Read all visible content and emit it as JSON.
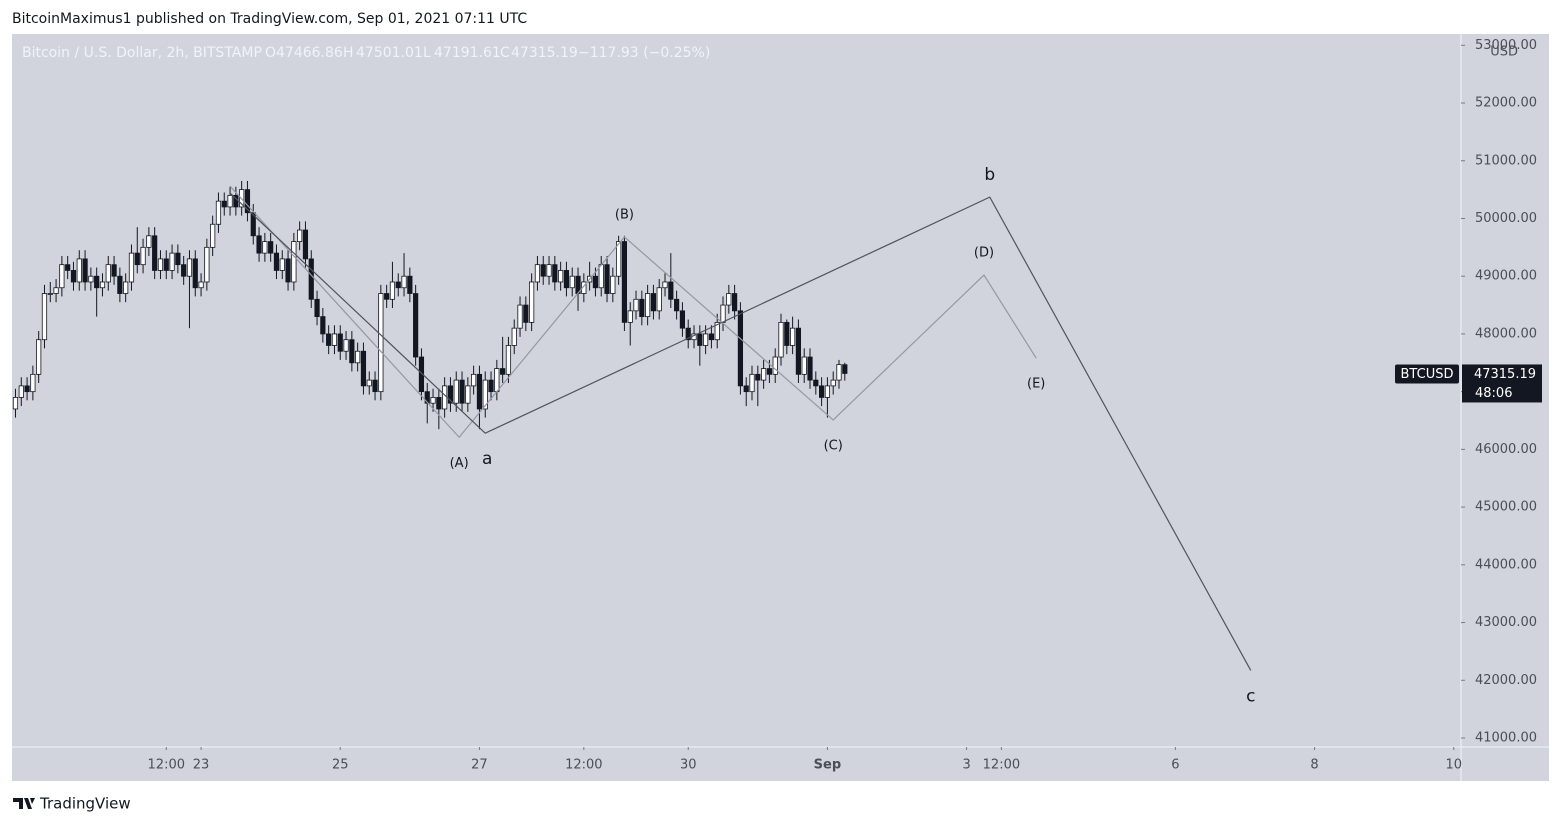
{
  "header": {
    "byline": "BitcoinMaximus1 published on TradingView.com, Sep 01, 2021 07:11 UTC",
    "brand": "TradingView"
  },
  "chart_data": {
    "type": "candlestick",
    "symbol_title": "Bitcoin / U.S. Dollar, 2h, BITSTAMP",
    "ohlc_letters": [
      "O",
      "H",
      "L",
      "C"
    ],
    "change": "−117.93 (−0.25%)",
    "currency": "USD",
    "countdown": "48:06",
    "up_color": "#ffffff",
    "down_color": "#131722",
    "background": "#d1d4dc",
    "xlim": [
      6.8,
      506.5
    ],
    "ylim": [
      40844,
      53196
    ],
    "xticks": [
      {
        "value": 60,
        "label": "12:00"
      },
      {
        "value": 72,
        "label": "23"
      },
      {
        "value": 120,
        "label": "25"
      },
      {
        "value": 168,
        "label": "27"
      },
      {
        "value": 204,
        "label": "12:00"
      },
      {
        "value": 240,
        "label": "30"
      },
      {
        "value": 288,
        "label": "Sep"
      },
      {
        "value": 336,
        "label": "3"
      },
      {
        "value": 348,
        "label": "12:00"
      },
      {
        "value": 408,
        "label": "6"
      },
      {
        "value": 456,
        "label": "8"
      },
      {
        "value": 504,
        "label": "10"
      }
    ],
    "yticks": [
      {
        "value": 41000,
        "label": "41000.00"
      },
      {
        "value": 42000,
        "label": "42000.00"
      },
      {
        "value": 43000,
        "label": "43000.00"
      },
      {
        "value": 44000,
        "label": "44000.00"
      },
      {
        "value": 45000,
        "label": "45000.00"
      },
      {
        "value": 46000,
        "label": "46000.00"
      },
      {
        "value": 47000,
        "label": "47000.00"
      },
      {
        "value": 48000,
        "label": "48000.00"
      },
      {
        "value": 49000,
        "label": "49000.00"
      },
      {
        "value": 50000,
        "label": "50000.00"
      },
      {
        "value": 51000,
        "label": "51000.00"
      },
      {
        "value": 52000,
        "label": "52000.00"
      },
      {
        "value": 53000,
        "label": "53000.00"
      }
    ],
    "series": [
      {
        "name": "BTCUSD",
        "x_start": 8,
        "x_step": 2,
        "ohlc": [
          [
            46700,
            47050,
            46550,
            46900
          ],
          [
            46900,
            47250,
            46750,
            47100
          ],
          [
            47100,
            47250,
            46850,
            47000
          ],
          [
            47000,
            47450,
            46850,
            47300
          ],
          [
            47300,
            48050,
            47150,
            47900
          ],
          [
            47900,
            48850,
            47750,
            48700
          ],
          [
            48700,
            48900,
            48550,
            48700
          ],
          [
            48700,
            48950,
            48550,
            48800
          ],
          [
            48800,
            49350,
            48650,
            49200
          ],
          [
            49200,
            49350,
            48950,
            49100
          ],
          [
            49100,
            49250,
            48750,
            48900
          ],
          [
            48900,
            49450,
            48750,
            49300
          ],
          [
            49300,
            49450,
            48750,
            48900
          ],
          [
            48900,
            49150,
            48750,
            49000
          ],
          [
            49000,
            49150,
            48300,
            48800
          ],
          [
            48800,
            49050,
            48650,
            48900
          ],
          [
            48900,
            49350,
            48750,
            49200
          ],
          [
            49200,
            49350,
            48850,
            49000
          ],
          [
            49000,
            49150,
            48550,
            48700
          ],
          [
            48700,
            49050,
            48550,
            48900
          ],
          [
            48900,
            49550,
            48750,
            49400
          ],
          [
            49400,
            49850,
            49050,
            49200
          ],
          [
            49200,
            49650,
            49050,
            49500
          ],
          [
            49500,
            49850,
            49350,
            49700
          ],
          [
            49700,
            49850,
            48950,
            49100
          ],
          [
            49100,
            49450,
            48950,
            49300
          ],
          [
            49300,
            49450,
            48950,
            49100
          ],
          [
            49100,
            49550,
            48950,
            49400
          ],
          [
            49400,
            49550,
            49050,
            49200
          ],
          [
            49200,
            49350,
            48850,
            49000
          ],
          [
            49000,
            49450,
            48100,
            49300
          ],
          [
            49300,
            49450,
            48650,
            48800
          ],
          [
            48800,
            49050,
            48650,
            48900
          ],
          [
            48900,
            49650,
            48750,
            49500
          ],
          [
            49500,
            50050,
            49350,
            49900
          ],
          [
            49900,
            50450,
            49750,
            50300
          ],
          [
            50300,
            50450,
            50050,
            50200
          ],
          [
            50200,
            50550,
            50050,
            50400
          ],
          [
            50400,
            50550,
            50050,
            50200
          ],
          [
            50200,
            50650,
            50050,
            50500
          ],
          [
            50500,
            50650,
            49950,
            50100
          ],
          [
            50100,
            50250,
            49550,
            49700
          ],
          [
            49700,
            49850,
            49250,
            49400
          ],
          [
            49400,
            49750,
            49250,
            49600
          ],
          [
            49600,
            49750,
            49250,
            49400
          ],
          [
            49400,
            49550,
            48950,
            49100
          ],
          [
            49100,
            49450,
            48950,
            49300
          ],
          [
            49300,
            49450,
            48750,
            48900
          ],
          [
            48900,
            49750,
            48750,
            49600
          ],
          [
            49600,
            49950,
            49450,
            49800
          ],
          [
            49800,
            49950,
            49150,
            49300
          ],
          [
            49300,
            49450,
            48450,
            48600
          ],
          [
            48600,
            48750,
            48150,
            48300
          ],
          [
            48300,
            48450,
            47850,
            48000
          ],
          [
            48000,
            48150,
            47650,
            47800
          ],
          [
            47800,
            48150,
            47650,
            48000
          ],
          [
            48000,
            48150,
            47550,
            47700
          ],
          [
            47700,
            48050,
            47550,
            47900
          ],
          [
            47900,
            48050,
            47350,
            47500
          ],
          [
            47500,
            47850,
            47350,
            47700
          ],
          [
            47700,
            47850,
            46950,
            47100
          ],
          [
            47100,
            47350,
            46950,
            47200
          ],
          [
            47200,
            47350,
            46850,
            47000
          ],
          [
            47000,
            48850,
            46850,
            48700
          ],
          [
            48700,
            48850,
            48450,
            48600
          ],
          [
            48600,
            49250,
            48450,
            48900
          ],
          [
            48900,
            49050,
            48650,
            48800
          ],
          [
            48800,
            49400,
            48650,
            49000
          ],
          [
            49000,
            49150,
            48550,
            48700
          ],
          [
            48700,
            48850,
            47450,
            47600
          ],
          [
            47600,
            47750,
            46850,
            47000
          ],
          [
            47000,
            47150,
            46450,
            46800
          ],
          [
            46800,
            47050,
            46650,
            46900
          ],
          [
            46900,
            47050,
            46350,
            46700
          ],
          [
            46700,
            47250,
            46550,
            47100
          ],
          [
            47100,
            47250,
            46650,
            46800
          ],
          [
            46800,
            47350,
            46650,
            47200
          ],
          [
            47200,
            47350,
            46650,
            46800
          ],
          [
            46800,
            47250,
            46650,
            47100
          ],
          [
            47100,
            47450,
            46950,
            47300
          ],
          [
            47300,
            47450,
            46350,
            46700
          ],
          [
            46700,
            47350,
            46550,
            47200
          ],
          [
            47200,
            47350,
            46850,
            47000
          ],
          [
            47000,
            47550,
            46850,
            47400
          ],
          [
            47400,
            47950,
            47150,
            47300
          ],
          [
            47300,
            47950,
            47150,
            47800
          ],
          [
            47800,
            48250,
            47650,
            48100
          ],
          [
            48100,
            48650,
            47950,
            48500
          ],
          [
            48500,
            48650,
            48050,
            48200
          ],
          [
            48200,
            49050,
            48050,
            48900
          ],
          [
            48900,
            49350,
            48750,
            49200
          ],
          [
            49200,
            49350,
            48850,
            49000
          ],
          [
            49000,
            49350,
            48850,
            49200
          ],
          [
            49200,
            49350,
            48750,
            48900
          ],
          [
            48900,
            49250,
            48750,
            49100
          ],
          [
            49100,
            49250,
            48650,
            48800
          ],
          [
            48800,
            49150,
            48650,
            49000
          ],
          [
            49000,
            49150,
            48400,
            48700
          ],
          [
            48700,
            49050,
            48550,
            48900
          ],
          [
            48900,
            49250,
            48750,
            49000
          ],
          [
            49000,
            49150,
            48650,
            48800
          ],
          [
            48800,
            49350,
            48650,
            49200
          ],
          [
            49200,
            49350,
            48550,
            48700
          ],
          [
            48700,
            49150,
            48550,
            49000
          ],
          [
            49000,
            49700,
            48850,
            49600
          ],
          [
            49600,
            49700,
            48050,
            48200
          ],
          [
            48200,
            48550,
            47800,
            48400
          ],
          [
            48400,
            48750,
            48250,
            48600
          ],
          [
            48600,
            48750,
            48150,
            48300
          ],
          [
            48300,
            48850,
            48150,
            48700
          ],
          [
            48700,
            48850,
            48250,
            48400
          ],
          [
            48400,
            48950,
            48250,
            48800
          ],
          [
            48800,
            49050,
            48650,
            48900
          ],
          [
            48900,
            49400,
            48450,
            48600
          ],
          [
            48600,
            48750,
            48250,
            48400
          ],
          [
            48400,
            48550,
            47950,
            48100
          ],
          [
            48100,
            48250,
            47750,
            47900
          ],
          [
            47900,
            48150,
            47750,
            48000
          ],
          [
            48000,
            48150,
            47450,
            47800
          ],
          [
            47800,
            48150,
            47650,
            48000
          ],
          [
            48000,
            48150,
            47750,
            47900
          ],
          [
            47900,
            48350,
            47750,
            48200
          ],
          [
            48200,
            48650,
            48050,
            48500
          ],
          [
            48500,
            48850,
            48350,
            48700
          ],
          [
            48700,
            48850,
            48250,
            48400
          ],
          [
            48400,
            48550,
            46950,
            47100
          ],
          [
            47100,
            47250,
            46750,
            47000
          ],
          [
            47000,
            47450,
            46850,
            47300
          ],
          [
            47300,
            47450,
            46750,
            47200
          ],
          [
            47200,
            47550,
            47050,
            47400
          ],
          [
            47400,
            47550,
            47150,
            47300
          ],
          [
            47300,
            47750,
            47150,
            47600
          ],
          [
            47600,
            48350,
            47450,
            48200
          ],
          [
            48200,
            48250,
            47650,
            47800
          ],
          [
            47800,
            48300,
            47650,
            48100
          ],
          [
            48100,
            48250,
            47150,
            47300
          ],
          [
            47300,
            47750,
            47150,
            47600
          ],
          [
            47600,
            47750,
            47050,
            47200
          ],
          [
            47200,
            47350,
            46950,
            47100
          ],
          [
            47100,
            47250,
            46750,
            46900
          ],
          [
            46900,
            47250,
            46550,
            47100
          ],
          [
            47100,
            47350,
            46950,
            47200
          ],
          [
            47200,
            47550,
            47050,
            47470
          ],
          [
            47466.86,
            47501.01,
            47191.61,
            47315.19
          ]
        ]
      }
    ],
    "waves": [
      {
        "color": "#9598a1",
        "x": [
          82,
          161,
          218,
          290,
          342,
          360
        ],
        "values": [
          50560,
          46210,
          49680,
          46510,
          49020,
          47580
        ],
        "labels": [
          null,
          "(A)",
          "(B)",
          "(C)",
          "(D)",
          "(E)"
        ]
      },
      {
        "color": "#50535e",
        "x": [
          82,
          170,
          344,
          434
        ],
        "values": [
          50440,
          46280,
          50370,
          42170
        ],
        "labels": [
          null,
          "a",
          "b",
          "c"
        ]
      }
    ]
  }
}
